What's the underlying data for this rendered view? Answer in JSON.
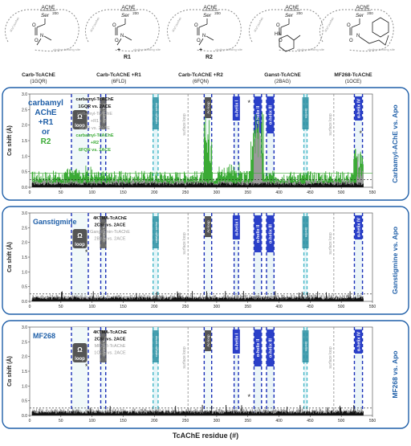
{
  "header": {
    "structures": [
      {
        "name": "Carb-TcAChE",
        "pdb": "(1GQR)"
      },
      {
        "name": "Carb-TcAChE +R1",
        "pdb": "(6FLD)"
      },
      {
        "name": "Carb-TcAChE +R2",
        "pdb": "(6FQN)"
      },
      {
        "name": "Ganst-TcAChE",
        "pdb": "(2BAG)"
      },
      {
        "name": "MF268-TcAChE",
        "pdb": "(1OCE)"
      }
    ],
    "enzyme_label": "AChE",
    "serine_label": "Ser",
    "serine_num": "200",
    "r1": "R1",
    "r2": "R2",
    "plus": "+",
    "pocket_labels": [
      "acyl pocket",
      "choline binding site"
    ],
    "hn": "HN",
    "n": "N"
  },
  "panels": [
    {
      "id": "panel1",
      "side_label": "Carbamyl-AChE vs. Apo",
      "legend_title": [
        "carbamyl",
        "AChE",
        "+R1",
        "or",
        "R2"
      ],
      "legend_lines": [
        {
          "text": "carbamyl-TcAChE",
          "color": "#111111"
        },
        {
          "text": "1GQR vs. 2ACE",
          "color": "#111111"
        },
        {
          "text": "carbamyl-TcAChE",
          "color": "#9a9a9a"
        },
        {
          "text": "+R1",
          "color": "#9a9a9a"
        },
        {
          "text": "6FLD vs. 2ACE",
          "color": "#9a9a9a"
        },
        {
          "text": "carbamyl-TcAChE",
          "color": "#3aaa35"
        },
        {
          "text": "+R2",
          "color": "#3aaa35"
        },
        {
          "text": "6FQN vs. 2ACE",
          "color": "#3aaa35"
        }
      ],
      "y_ticks": [
        "0.0",
        "0.5",
        "1.0",
        "1.5",
        "2.0",
        "2.5",
        "3.0"
      ],
      "x_ticks": [
        "0",
        "50",
        "100",
        "150",
        "200",
        "250",
        "300",
        "350",
        "400",
        "450",
        "500",
        "550"
      ]
    },
    {
      "id": "panel2",
      "side_label": "Ganstigmine vs. Apo",
      "legend_title": [
        "Ganstigmine"
      ],
      "legend_lines": [
        {
          "text": "4KTMA-TcAChE",
          "color": "#111111"
        },
        {
          "text": "2C5F vs. 2ACE",
          "color": "#111111"
        },
        {
          "text": "Gangtigmin-TcAChE",
          "color": "#9a9a9a"
        },
        {
          "text": "2BAG vs. 2ACE",
          "color": "#9a9a9a"
        }
      ],
      "y_ticks": [
        "0.0",
        "0.5",
        "1.0",
        "1.5",
        "2.0",
        "2.5",
        "3.0"
      ],
      "x_ticks": [
        "0",
        "50",
        "100",
        "150",
        "200",
        "250",
        "300",
        "350",
        "400",
        "450",
        "500",
        "550"
      ]
    },
    {
      "id": "panel3",
      "side_label": "MF268 vs. Apo",
      "legend_title": [
        "MF268"
      ],
      "legend_lines": [
        {
          "text": "4KTMA-TcAChE",
          "color": "#111111"
        },
        {
          "text": "2C5F vs. 2ACE",
          "color": "#111111"
        },
        {
          "text": "MF268-TcAChE",
          "color": "#9a9a9a"
        },
        {
          "text": "1OCE vs. 2ACE",
          "color": "#9a9a9a"
        }
      ],
      "y_ticks": [
        "0.0",
        "0.5",
        "1.0",
        "1.5",
        "2.0",
        "2.5",
        "3.0"
      ],
      "x_ticks": [
        "0",
        "50",
        "100",
        "150",
        "200",
        "250",
        "300",
        "350",
        "400",
        "450",
        "500",
        "550"
      ]
    }
  ],
  "y_axis_label": "Cα shift (Å)",
  "x_axis_label": "TcAChE residue (#)",
  "regions": [
    {
      "start": 67,
      "end": 94,
      "label": "Ω loop",
      "style": "dark-box"
    },
    {
      "start": 114,
      "end": 122,
      "label": "oxyanion hole",
      "style": "dark-vertical"
    },
    {
      "start": 198,
      "end": 206,
      "label": "catalytic serine",
      "style": "teal-vertical"
    },
    {
      "start": 254,
      "end": 254,
      "label": "surface loop",
      "style": "gray-dashed"
    },
    {
      "start": 280,
      "end": 292,
      "label": "Ac-loop",
      "style": "dark-box-small"
    },
    {
      "start": 328,
      "end": 335,
      "label": "α-helix I",
      "style": "blue-box"
    },
    {
      "start": 360,
      "end": 372,
      "label": "α-helix II",
      "style": "blue-box-tall"
    },
    {
      "start": 380,
      "end": 392,
      "label": "α-helix III",
      "style": "blue-box-tall"
    },
    {
      "start": 440,
      "end": 445,
      "label": "His440",
      "style": "teal-vertical"
    },
    {
      "start": 488,
      "end": 488,
      "label": "surface loop",
      "style": "gray-dashed"
    },
    {
      "start": 521,
      "end": 534,
      "label": "α-helix IV",
      "style": "blue-box"
    }
  ],
  "asterisk": "*",
  "colors": {
    "frame": "#1f5fa8",
    "dash_blue": "#1a2fb8",
    "teal": "#44b6c6",
    "black_series": "#111111",
    "gray_series": "#9a9a9a",
    "green_series": "#3aaa35",
    "legend_blue": "#1f5fa8",
    "legend_green": "#3aaa35"
  }
}
